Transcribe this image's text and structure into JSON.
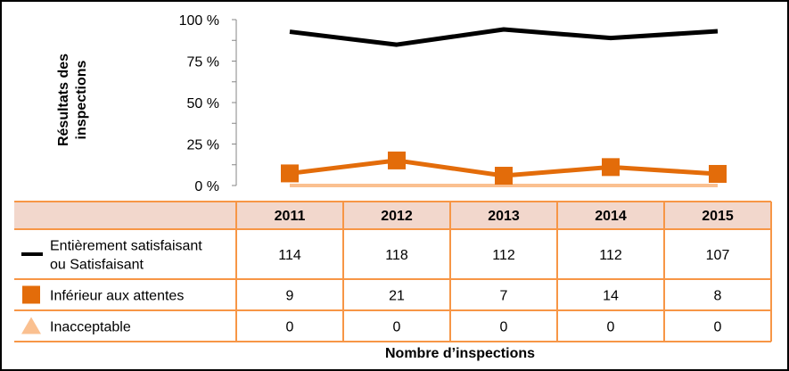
{
  "chart_data": {
    "type": "line",
    "ylabel_lines": [
      "Résultats des",
      "inspections"
    ],
    "xlabel": "Nombre d’inspections",
    "categories": [
      "2011",
      "2012",
      "2013",
      "2014",
      "2015"
    ],
    "y_ticks": [
      "100 %",
      "75 %",
      "50 %",
      "25 %",
      "0 %"
    ],
    "y_tick_values": [
      1.0,
      0.75,
      0.5,
      0.25,
      0
    ],
    "ylim": [
      0,
      1
    ],
    "grid": false,
    "series": [
      {
        "name": "Entièrement satisfaisant ou Satisfaisant",
        "name_lines": [
          "Entièrement satisfaisant",
          "ou Satisfaisant"
        ],
        "counts": [
          114,
          118,
          112,
          112,
          107
        ],
        "values": [
          0.927,
          0.849,
          0.941,
          0.889,
          0.93
        ],
        "color": "#000000",
        "marker": "none"
      },
      {
        "name": "Inférieur aux attentes",
        "name_lines": [
          "Inférieur aux attentes"
        ],
        "counts": [
          9,
          21,
          7,
          14,
          8
        ],
        "values": [
          0.073,
          0.151,
          0.059,
          0.111,
          0.07
        ],
        "color": "#E36C0A",
        "marker": "square"
      },
      {
        "name": "Inacceptable",
        "name_lines": [
          "Inacceptable"
        ],
        "counts": [
          0,
          0,
          0,
          0,
          0
        ],
        "values": [
          0,
          0,
          0,
          0,
          0
        ],
        "color": "#FAC090",
        "marker": "triangle"
      }
    ],
    "colors": {
      "table_border": "#F79646",
      "header_fill": "#F2D7CC"
    }
  }
}
